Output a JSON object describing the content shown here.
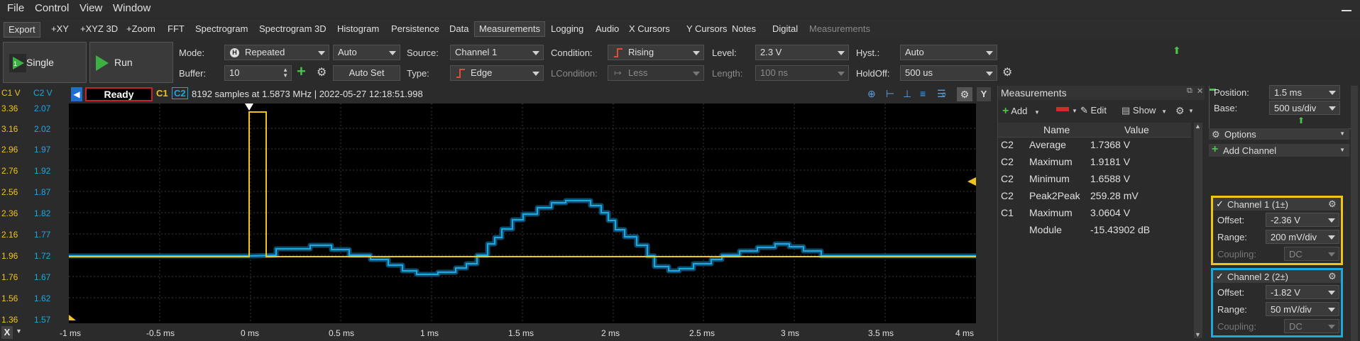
{
  "menu": [
    {
      "label": "File"
    },
    {
      "label": "Control"
    },
    {
      "label": "View"
    },
    {
      "label": "Window"
    }
  ],
  "tabs": [
    "Export",
    "+XY",
    "+XYZ 3D",
    "+Zoom",
    "FFT",
    "Spectrogram",
    "Spectrogram 3D",
    "Histogram",
    "Persistence",
    "Data",
    "Measurements",
    "Logging",
    "Audio",
    "X Cursors",
    "Y Cursors",
    "Notes",
    "Digital",
    "Measurements"
  ],
  "toolbar": {
    "single_label": "Single",
    "run_label": "Run",
    "mode_label": "Mode:",
    "mode_value": "Repeated",
    "auto_value": "Auto",
    "source_label": "Source:",
    "source_value": "Channel 1",
    "condition_label": "Condition:",
    "condition_value": "Rising",
    "level_label": "Level:",
    "level_value": "2.3 V",
    "hyst_label": "Hyst.:",
    "hyst_value": "Auto",
    "buffer_label": "Buffer:",
    "buffer_value": "10",
    "autoset_label": "Auto Set",
    "type_label": "Type:",
    "type_value": "Edge",
    "lcondition_label": "LCondition:",
    "lcondition_value": "Less",
    "length_label": "Length:",
    "length_value": "100 ns",
    "holdoff_label": "HoldOff:",
    "holdoff_value": "500 us"
  },
  "scope": {
    "c1_unit": "C1 V",
    "c2_unit": "C2 V",
    "status": "Ready",
    "c1_tag": "C1",
    "c2_tag": "C2",
    "info": "8192 samples at 1.5873 MHz | 2022-05-27 12:18:51.998",
    "y_axis": "Y",
    "c1_ticks": [
      "3.36",
      "3.16",
      "2.96",
      "2.76",
      "2.56",
      "2.36",
      "2.16",
      "1.96",
      "1.76",
      "1.56",
      "1.36"
    ],
    "c2_ticks": [
      "2.07",
      "2.02",
      "1.97",
      "1.92",
      "1.87",
      "1.82",
      "1.77",
      "1.72",
      "1.67",
      "1.62",
      "1.57"
    ],
    "x_ticks": [
      "-1 ms",
      "-0.5 ms",
      "0 ms",
      "0.5 ms",
      "1 ms",
      "1.5 ms",
      "2 ms",
      "2.5 ms",
      "3 ms",
      "3.5 ms",
      "4 ms"
    ],
    "close_label": "X",
    "c1_color": "#f0c419",
    "c2_color": "#1ea8e0"
  },
  "measurements": {
    "title": "Measurements",
    "add_label": "Add",
    "edit_label": "Edit",
    "show_label": "Show",
    "col_name": "Name",
    "col_value": "Value",
    "rows": [
      {
        "ch": "C2",
        "name": "Average",
        "value": "1.7368 V"
      },
      {
        "ch": "C2",
        "name": "Maximum",
        "value": "1.9181 V"
      },
      {
        "ch": "C2",
        "name": "Minimum",
        "value": "1.6588 V"
      },
      {
        "ch": "C2",
        "name": "Peak2Peak",
        "value": "259.28 mV"
      },
      {
        "ch": "C1",
        "name": "Maximum",
        "value": "3.0604 V"
      },
      {
        "ch": "",
        "name": "Module",
        "value": "-15.43902 dB"
      }
    ]
  },
  "panel": {
    "position_label": "Position:",
    "position_value": "1.5 ms",
    "base_label": "Base:",
    "base_value": "500 us/div",
    "options_label": "Options",
    "add_channel_label": "Add Channel",
    "ch1": {
      "title": "Channel 1 (1±)",
      "offset_label": "Offset:",
      "offset_value": "-2.36 V",
      "range_label": "Range:",
      "range_value": "200 mV/div",
      "coupling_label": "Coupling:",
      "coupling_value": "DC"
    },
    "ch2": {
      "title": "Channel 2 (2±)",
      "offset_label": "Offset:",
      "offset_value": "-1.82 V",
      "range_label": "Range:",
      "range_value": "50 mV/div",
      "coupling_label": "Coupling:",
      "coupling_value": "DC"
    }
  }
}
